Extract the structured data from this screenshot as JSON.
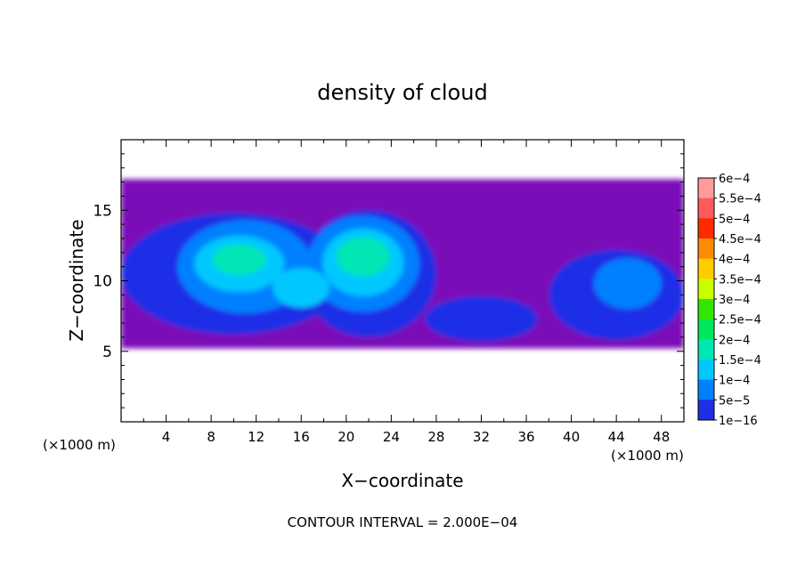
{
  "chart_data": {
    "type": "heatmap",
    "title": "density of cloud",
    "xlabel": "X−coordinate",
    "ylabel": "Z−coordinate",
    "x_unit": "(×1000 m)",
    "x_unit_right": "(×1000 m)",
    "xlim": [
      0,
      50
    ],
    "ylim": [
      0,
      20
    ],
    "x_ticks": [
      4,
      8,
      12,
      16,
      20,
      24,
      28,
      32,
      36,
      40,
      44,
      48
    ],
    "x_tick_labels": [
      "4",
      "8",
      "12",
      "16",
      "20",
      "24",
      "28",
      "32",
      "36",
      "40",
      "44",
      "48"
    ],
    "y_ticks": [
      5,
      10,
      15
    ],
    "y_tick_labels": [
      "5",
      "10",
      "15"
    ],
    "cloud_base_z": 5.2,
    "cloud_top_z": 17.2,
    "footer": "CONTOUR INTERVAL = 2.000E−04",
    "legend": {
      "placement": "right",
      "levels": [
        {
          "label": "6e−4",
          "color": "#ff9b9b"
        },
        {
          "label": "5.5e−4",
          "color": "#ff5a5a"
        },
        {
          "label": "5e−4",
          "color": "#ff2a00"
        },
        {
          "label": "4.5e−4",
          "color": "#ff8c00"
        },
        {
          "label": "4e−4",
          "color": "#ffcc00"
        },
        {
          "label": "3.5e−4",
          "color": "#c8ff00"
        },
        {
          "label": "3e−4",
          "color": "#33e600"
        },
        {
          "label": "2.5e−4",
          "color": "#00e65a"
        },
        {
          "label": "2e−4",
          "color": "#00e6b4"
        },
        {
          "label": "1.5e−4",
          "color": "#00c8ff"
        },
        {
          "label": "1e−4",
          "color": "#0080ff"
        },
        {
          "label": "5e−5",
          "color": "#1e2fe6"
        },
        {
          "label": "1e−16",
          "color": "#7a10b8"
        }
      ]
    },
    "regions": [
      {
        "level": "1e−16",
        "cx": 25,
        "cz": 11.2,
        "rx": 25,
        "rz": 6.0
      },
      {
        "level": "5e−5",
        "cx": 10,
        "cz": 10.5,
        "rx": 10,
        "rz": 4.3
      },
      {
        "level": "5e−5",
        "cx": 22,
        "cz": 10.5,
        "rx": 6,
        "rz": 4.5
      },
      {
        "level": "5e−5",
        "cx": 44,
        "cz": 9.0,
        "rx": 6,
        "rz": 3.2
      },
      {
        "level": "5e−5",
        "cx": 32,
        "cz": 7.3,
        "rx": 5,
        "rz": 1.6
      },
      {
        "level": "1e−4",
        "cx": 11,
        "cz": 11.0,
        "rx": 6,
        "rz": 3.3
      },
      {
        "level": "1e−4",
        "cx": 21.5,
        "cz": 11.2,
        "rx": 5,
        "rz": 3.4
      },
      {
        "level": "1e−4",
        "cx": 45,
        "cz": 9.8,
        "rx": 3,
        "rz": 1.8
      },
      {
        "level": "1.5e−4",
        "cx": 10.5,
        "cz": 11.2,
        "rx": 4,
        "rz": 2.0
      },
      {
        "level": "1.5e−4",
        "cx": 21.5,
        "cz": 11.3,
        "rx": 3.6,
        "rz": 2.4
      },
      {
        "level": "1.5e−4",
        "cx": 16,
        "cz": 9.5,
        "rx": 2.5,
        "rz": 1.4
      },
      {
        "level": "2e−4",
        "cx": 10.5,
        "cz": 11.5,
        "rx": 2.4,
        "rz": 1.1
      },
      {
        "level": "2e−4",
        "cx": 21.5,
        "cz": 11.7,
        "rx": 2.4,
        "rz": 1.4
      }
    ]
  }
}
